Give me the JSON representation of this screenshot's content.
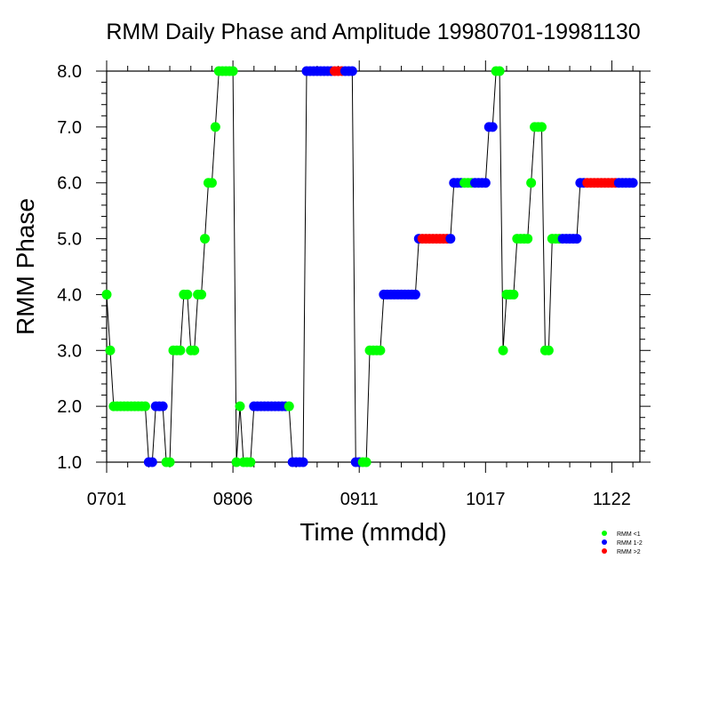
{
  "chart_data": {
    "type": "scatter",
    "title": "RMM Daily Phase and Amplitude 19980701-19981130",
    "xlabel": "Time (mmdd)",
    "ylabel": "RMM Phase",
    "xlim": [
      "1998-07-01",
      "1998-11-30"
    ],
    "ylim": [
      1.0,
      8.0
    ],
    "x_ticks": [
      "1998-07-01",
      "1998-08-06",
      "1998-09-11",
      "1998-10-17",
      "1998-11-22"
    ],
    "x_tick_labels": [
      "0701",
      "0806",
      "0911",
      "1017",
      "1122"
    ],
    "y_ticks": [
      1,
      2,
      3,
      4,
      5,
      6,
      7,
      8
    ],
    "y_tick_labels": [
      "1.0",
      "2.0",
      "3.0",
      "4.0",
      "5.0",
      "6.0",
      "7.0",
      "8.0"
    ],
    "legend": {
      "position": "bottom-right",
      "items": [
        {
          "label": "RMM <1",
          "color": "#00ff00"
        },
        {
          "label": "RMM 1-2",
          "color": "#0000ff"
        },
        {
          "label": "RMM >2",
          "color": "#ff0000"
        }
      ]
    },
    "amplitude_classes": {
      "g": "RMM <1",
      "b": "RMM 1-2",
      "r": "RMM >2"
    },
    "start_date": "1998-07-01",
    "phase": [
      4,
      3,
      2,
      2,
      2,
      2,
      2,
      2,
      2,
      2,
      2,
      2,
      1,
      1,
      2,
      2,
      2,
      1,
      1,
      3,
      3,
      3,
      4,
      4,
      3,
      3,
      4,
      4,
      5,
      6,
      6,
      7,
      8,
      8,
      8,
      8,
      8,
      1,
      2,
      1,
      1,
      1,
      2,
      2,
      2,
      2,
      2,
      2,
      2,
      2,
      2,
      2,
      2,
      1,
      1,
      1,
      1,
      8,
      8,
      8,
      8,
      8,
      8,
      8,
      8,
      8,
      8,
      8,
      8,
      8,
      8,
      1,
      1,
      1,
      1,
      3,
      3,
      3,
      3,
      4,
      4,
      4,
      4,
      4,
      4,
      4,
      4,
      4,
      4,
      5,
      5,
      5,
      5,
      5,
      5,
      5,
      5,
      5,
      5,
      6,
      6,
      6,
      6,
      6,
      6,
      6,
      6,
      6,
      6,
      7,
      7,
      8,
      8,
      3,
      4,
      4,
      4,
      5,
      5,
      5,
      5,
      6,
      7,
      7,
      7,
      3,
      3,
      5,
      5,
      5,
      5,
      5,
      5,
      5,
      5,
      6,
      6,
      6,
      6,
      6,
      6,
      6,
      6,
      6,
      6,
      6,
      6,
      6,
      6,
      6,
      6
    ],
    "amplitude_class": "ggggggggggggbbbbbgggggggggggggggggggggggggbbbbbbbbbbgbbbbbbbbbbbbrrrbbbbbggggggbbbbbbbbbbbrrrrrrrrbbbbgggbbbbbbgggggggggggggggggggbbbbbbbrrrrrrrrrbbbbbbbbbbbbb"
  }
}
